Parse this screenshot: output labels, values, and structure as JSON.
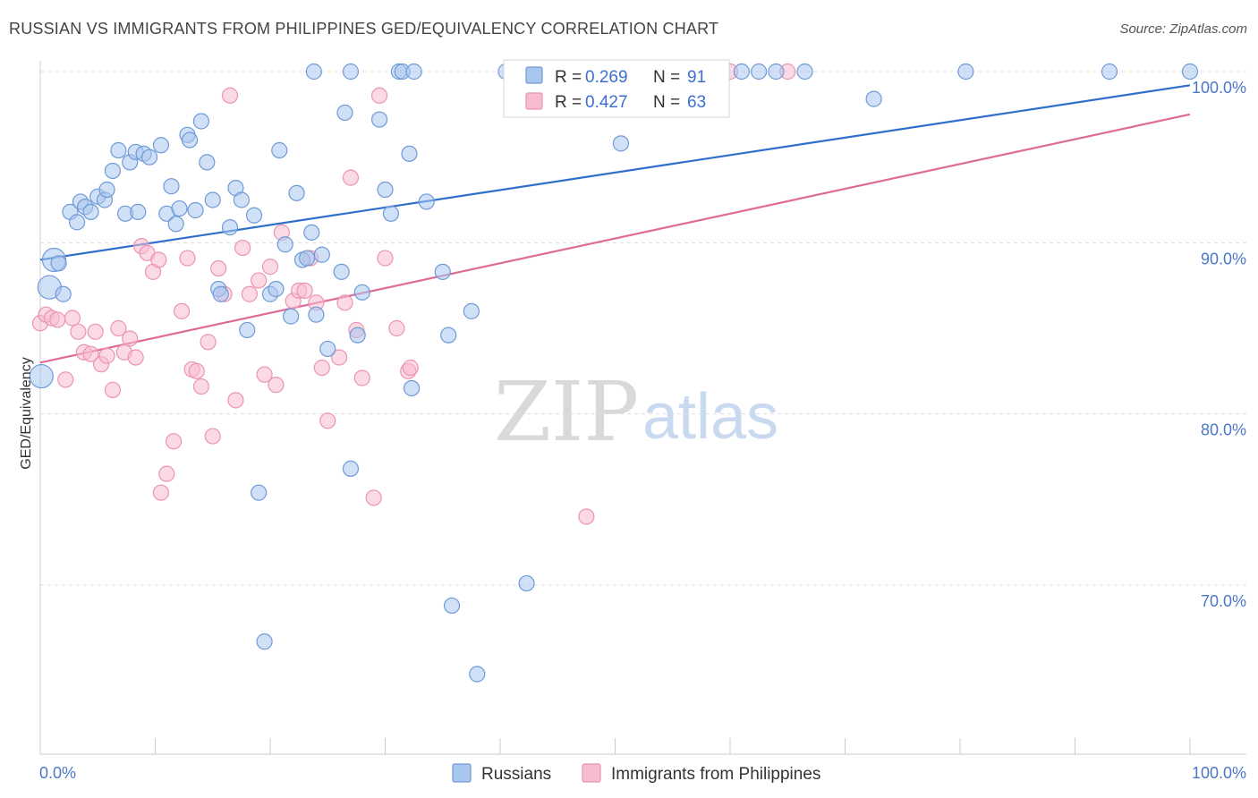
{
  "header": {
    "title": "RUSSIAN VS IMMIGRANTS FROM PHILIPPINES GED/EQUIVALENCY CORRELATION CHART",
    "source": "Source: ZipAtlas.com"
  },
  "watermark": {
    "zip": "ZIP",
    "atlas": "atlas"
  },
  "legend": {
    "r_label": "R =",
    "n_label": "N =",
    "entries": [
      {
        "name": "Russians",
        "r": "0.269",
        "n": "91"
      },
      {
        "name": "Immigrants from Philippines",
        "r": "0.427",
        "n": "63"
      }
    ]
  },
  "colors": {
    "russians_fill": "#a9c6ee",
    "russians_stroke": "#6f9ad8",
    "russians_line": "#2f6fcc",
    "phil_fill": "#f7bcd0",
    "phil_stroke": "#eb94b3",
    "phil_line": "#e06a98",
    "axis_text": "#4a78c8",
    "grid": "#dddddd"
  },
  "chart_data": {
    "type": "scatter",
    "title": "RUSSIAN VS IMMIGRANTS FROM PHILIPPINES GED/EQUIVALENCY CORRELATION CHART",
    "xlabel": "",
    "ylabel": "GED/Equivalency",
    "xlim": [
      0,
      100
    ],
    "ylim": [
      62,
      102
    ],
    "x_tick_labels": [
      "0.0%",
      "100.0%"
    ],
    "y_ticks": [
      70,
      80,
      90,
      100
    ],
    "y_tick_labels": [
      "70.0%",
      "80.0%",
      "90.0%",
      "100.0%"
    ],
    "grid": true,
    "legend_position": "top-center",
    "series": [
      {
        "name": "Russians",
        "trend": {
          "x": [
            0,
            100
          ],
          "y": [
            89.0,
            99.2
          ]
        },
        "points": [
          [
            0.1,
            82.2
          ],
          [
            1.2,
            89.0
          ],
          [
            1.6,
            88.8
          ],
          [
            0.8,
            87.4
          ],
          [
            2.0,
            87.0
          ],
          [
            2.6,
            91.8
          ],
          [
            3.2,
            91.2
          ],
          [
            3.5,
            92.4
          ],
          [
            3.9,
            92.1
          ],
          [
            4.4,
            91.8
          ],
          [
            5.0,
            92.7
          ],
          [
            5.6,
            92.5
          ],
          [
            5.8,
            93.1
          ],
          [
            6.3,
            94.2
          ],
          [
            6.8,
            95.4
          ],
          [
            7.8,
            94.7
          ],
          [
            8.3,
            95.3
          ],
          [
            9.0,
            95.2
          ],
          [
            9.5,
            95.0
          ],
          [
            7.4,
            91.7
          ],
          [
            8.5,
            91.8
          ],
          [
            10.5,
            95.7
          ],
          [
            11.0,
            91.7
          ],
          [
            11.4,
            93.3
          ],
          [
            11.8,
            91.1
          ],
          [
            12.1,
            92.0
          ],
          [
            12.8,
            96.3
          ],
          [
            13.0,
            96.0
          ],
          [
            13.5,
            91.9
          ],
          [
            14.0,
            97.1
          ],
          [
            14.5,
            94.7
          ],
          [
            15.0,
            92.5
          ],
          [
            15.5,
            87.3
          ],
          [
            15.7,
            87.0
          ],
          [
            16.5,
            90.9
          ],
          [
            17.0,
            93.2
          ],
          [
            17.5,
            92.5
          ],
          [
            18.0,
            84.9
          ],
          [
            18.6,
            91.6
          ],
          [
            19.0,
            75.4
          ],
          [
            19.5,
            66.7
          ],
          [
            20.0,
            87.0
          ],
          [
            20.5,
            87.3
          ],
          [
            20.8,
            95.4
          ],
          [
            21.3,
            89.9
          ],
          [
            21.8,
            85.7
          ],
          [
            22.3,
            92.9
          ],
          [
            22.8,
            89.0
          ],
          [
            23.2,
            89.1
          ],
          [
            23.6,
            90.6
          ],
          [
            24.5,
            89.3
          ],
          [
            23.8,
            100.0
          ],
          [
            24.0,
            85.8
          ],
          [
            25.0,
            83.8
          ],
          [
            26.2,
            88.3
          ],
          [
            26.5,
            97.6
          ],
          [
            27.0,
            76.8
          ],
          [
            27.6,
            84.6
          ],
          [
            28.0,
            87.1
          ],
          [
            29.5,
            97.2
          ],
          [
            30.0,
            93.1
          ],
          [
            30.5,
            91.7
          ],
          [
            31.2,
            100.0
          ],
          [
            32.1,
            95.2
          ],
          [
            32.3,
            81.5
          ],
          [
            33.6,
            92.4
          ],
          [
            35.0,
            88.3
          ],
          [
            35.5,
            84.6
          ],
          [
            35.8,
            68.8
          ],
          [
            37.5,
            86.0
          ],
          [
            27.0,
            100.0
          ],
          [
            31.5,
            100.0
          ],
          [
            32.5,
            100.0
          ],
          [
            38.0,
            64.8
          ],
          [
            40.5,
            100.0
          ],
          [
            42.0,
            100.0
          ],
          [
            42.3,
            70.1
          ],
          [
            47.0,
            100.0
          ],
          [
            49.0,
            100.0
          ],
          [
            50.0,
            100.0
          ],
          [
            50.5,
            95.8
          ],
          [
            52.0,
            100.0
          ],
          [
            53.0,
            100.0
          ],
          [
            61.0,
            100.0
          ],
          [
            62.5,
            100.0
          ],
          [
            64.0,
            100.0
          ],
          [
            66.5,
            100.0
          ],
          [
            72.5,
            98.4
          ],
          [
            80.5,
            100.0
          ],
          [
            93.0,
            100.0
          ],
          [
            100.0,
            100.0
          ]
        ]
      },
      {
        "name": "Immigrants from Philippines",
        "trend": {
          "x": [
            0,
            100
          ],
          "y": [
            83.0,
            97.5
          ]
        },
        "points": [
          [
            0.0,
            85.3
          ],
          [
            0.5,
            85.8
          ],
          [
            1.0,
            85.6
          ],
          [
            1.5,
            85.5
          ],
          [
            2.2,
            82.0
          ],
          [
            2.8,
            85.6
          ],
          [
            3.3,
            84.8
          ],
          [
            3.8,
            83.6
          ],
          [
            4.4,
            83.5
          ],
          [
            4.8,
            84.8
          ],
          [
            5.3,
            82.9
          ],
          [
            5.8,
            83.4
          ],
          [
            6.3,
            81.4
          ],
          [
            6.8,
            85.0
          ],
          [
            7.3,
            83.6
          ],
          [
            7.8,
            84.4
          ],
          [
            8.3,
            83.3
          ],
          [
            8.8,
            89.8
          ],
          [
            9.3,
            89.4
          ],
          [
            9.8,
            88.3
          ],
          [
            10.3,
            89.0
          ],
          [
            10.5,
            75.4
          ],
          [
            11.0,
            76.5
          ],
          [
            11.6,
            78.4
          ],
          [
            12.3,
            86.0
          ],
          [
            12.8,
            89.1
          ],
          [
            13.2,
            82.6
          ],
          [
            13.6,
            82.5
          ],
          [
            14.0,
            81.6
          ],
          [
            14.6,
            84.2
          ],
          [
            15.0,
            78.7
          ],
          [
            15.5,
            88.5
          ],
          [
            16.0,
            87.0
          ],
          [
            16.5,
            98.6
          ],
          [
            17.0,
            80.8
          ],
          [
            17.6,
            89.7
          ],
          [
            18.2,
            87.0
          ],
          [
            19.0,
            87.8
          ],
          [
            19.5,
            82.3
          ],
          [
            20.0,
            88.6
          ],
          [
            20.5,
            81.7
          ],
          [
            21.0,
            90.6
          ],
          [
            22.0,
            86.6
          ],
          [
            22.5,
            87.2
          ],
          [
            23.0,
            87.2
          ],
          [
            23.5,
            89.1
          ],
          [
            24.0,
            86.5
          ],
          [
            24.5,
            82.7
          ],
          [
            25.0,
            79.6
          ],
          [
            26.0,
            83.3
          ],
          [
            26.5,
            86.5
          ],
          [
            27.0,
            93.8
          ],
          [
            27.5,
            84.9
          ],
          [
            28.0,
            82.1
          ],
          [
            29.0,
            75.1
          ],
          [
            29.5,
            98.6
          ],
          [
            30.0,
            89.1
          ],
          [
            31.0,
            85.0
          ],
          [
            32.0,
            82.5
          ],
          [
            32.2,
            82.7
          ],
          [
            47.5,
            74.0
          ],
          [
            60.0,
            100.0
          ],
          [
            65.0,
            100.0
          ]
        ]
      }
    ]
  }
}
